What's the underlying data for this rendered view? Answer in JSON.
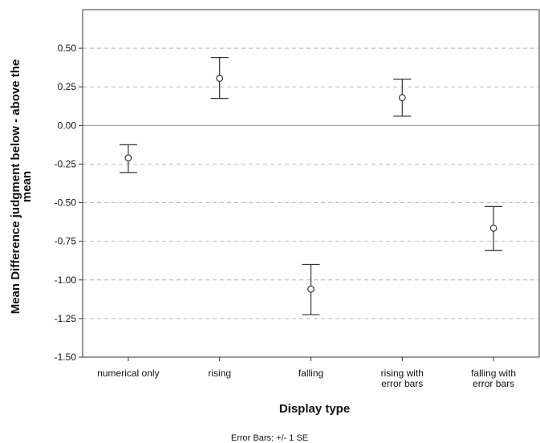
{
  "chart_data": {
    "type": "scatter",
    "subtype": "mean-with-error-bars",
    "xlabel": "Display type",
    "ylabel": [
      "Mean Difference judgment below - above the",
      "mean"
    ],
    "footnote": "Error Bars: +/- 1 SE",
    "ylim": [
      -1.5,
      0.75
    ],
    "yticks": [
      0.5,
      0.25,
      0.0,
      -0.25,
      -0.5,
      -0.75,
      -1.0,
      -1.25,
      -1.5
    ],
    "ytick_labels": [
      "0.50",
      "0.25",
      "0.00",
      "-0.25",
      "-0.50",
      "-0.75",
      "-1.00",
      "-1.25",
      "-1.50"
    ],
    "grid": "horizontal-dashed",
    "reference_line_y": 0,
    "categories": [
      [
        "numerical only"
      ],
      [
        "rising"
      ],
      [
        "falling"
      ],
      [
        "rising with",
        "error bars"
      ],
      [
        "falling with",
        "error bars"
      ]
    ],
    "points": [
      {
        "mean": -0.21,
        "upper": -0.125,
        "lower": -0.305
      },
      {
        "mean": 0.305,
        "upper": 0.44,
        "lower": 0.175
      },
      {
        "mean": -1.06,
        "upper": -0.9,
        "lower": -1.225
      },
      {
        "mean": 0.18,
        "upper": 0.3,
        "lower": 0.06
      },
      {
        "mean": -0.665,
        "upper": -0.525,
        "lower": -0.81
      }
    ],
    "colors": {
      "line": "#333333",
      "grid": "#bbbbbb",
      "reference": "#999999"
    }
  }
}
